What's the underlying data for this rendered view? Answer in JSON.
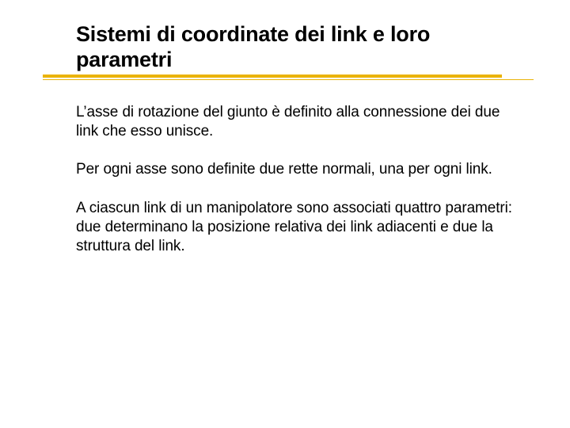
{
  "title_fontsize": 27,
  "body_fontsize": 19,
  "text_color": "#000000",
  "background_color": "#ffffff",
  "accent_color": "#eab308",
  "title": "Sistemi di coordinate dei link e loro parametri",
  "paragraphs": [
    "L’asse di rotazione del giunto è definito alla connessione dei due link che esso unisce.",
    "Per ogni asse sono definite due rette normali, una per ogni link.",
    "A ciascun link di un manipolatore sono associati quattro parametri: due determinano la posizione relativa dei link adiacenti e due la struttura del link."
  ]
}
